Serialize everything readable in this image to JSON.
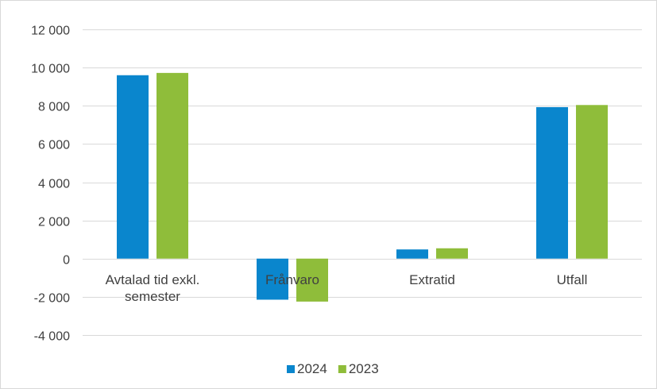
{
  "chart_data": {
    "type": "bar",
    "categories": [
      [
        "Avtalad tid exkl.",
        "semester"
      ],
      [
        "Frånvaro"
      ],
      [
        "Extratid"
      ],
      [
        "Utfall"
      ]
    ],
    "series": [
      {
        "name": "2024",
        "color": "#0a86cd",
        "values": [
          9600,
          -2150,
          480,
          7930
        ]
      },
      {
        "name": "2023",
        "color": "#8fbd3a",
        "values": [
          9720,
          -2250,
          540,
          8040
        ]
      }
    ],
    "yticks": [
      "12 000",
      "10 000",
      "8 000",
      "6 000",
      "4 000",
      "2 000",
      "0",
      "-2 000",
      "-4 000"
    ],
    "ytick_values": [
      12000,
      10000,
      8000,
      6000,
      4000,
      2000,
      0,
      -2000,
      -4000
    ],
    "ylim": [
      -4000,
      12000
    ],
    "grid": true,
    "legend_position": "bottom",
    "gridline_color": "#d9d9d9",
    "frame_color": "#d9d9d9"
  }
}
